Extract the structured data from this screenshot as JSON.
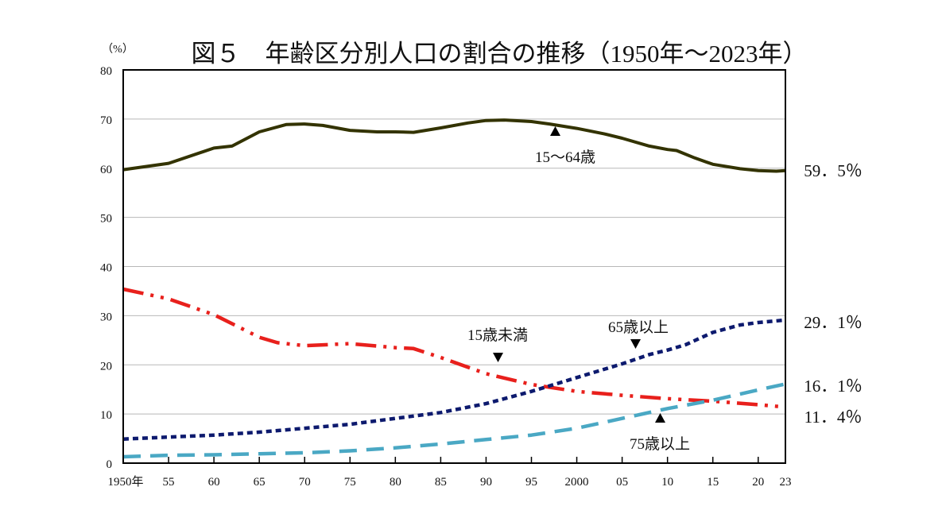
{
  "chart_data": {
    "type": "line",
    "title": "図５　年齢区分別人口の割合の推移（1950年～2023年）",
    "ylabel": "（%）",
    "xlabel": "",
    "ylim": [
      0,
      80
    ],
    "xlim": [
      1950,
      2023
    ],
    "y_ticks": [
      "0",
      "10",
      "20",
      "30",
      "40",
      "50",
      "60",
      "70",
      "80"
    ],
    "x_ticks": [
      {
        "year": 1950,
        "label": "1950年"
      },
      {
        "year": 1955,
        "label": "55"
      },
      {
        "year": 1960,
        "label": "60"
      },
      {
        "year": 1965,
        "label": "65"
      },
      {
        "year": 1970,
        "label": "70"
      },
      {
        "year": 1975,
        "label": "75"
      },
      {
        "year": 1980,
        "label": "80"
      },
      {
        "year": 1985,
        "label": "85"
      },
      {
        "year": 1990,
        "label": "90"
      },
      {
        "year": 1995,
        "label": "95"
      },
      {
        "year": 2000,
        "label": "2000"
      },
      {
        "year": 2005,
        "label": "05"
      },
      {
        "year": 2010,
        "label": "10"
      },
      {
        "year": 2015,
        "label": "15"
      },
      {
        "year": 2020,
        "label": "20"
      },
      {
        "year": 2023,
        "label": "23"
      }
    ],
    "grid": true,
    "series": [
      {
        "name": "15～64歳",
        "color": "#333300",
        "style": "solid",
        "end_label": "59．5％",
        "x": [
          1950,
          1955,
          1960,
          1962,
          1965,
          1968,
          1970,
          1972,
          1975,
          1978,
          1980,
          1982,
          1985,
          1988,
          1990,
          1992,
          1995,
          1997,
          2000,
          2003,
          2005,
          2008,
          2010,
          2011,
          2013,
          2015,
          2018,
          2020,
          2022,
          2023
        ],
        "y": [
          59.7,
          61.0,
          64.1,
          64.5,
          67.4,
          68.9,
          69.0,
          68.7,
          67.7,
          67.4,
          67.4,
          67.3,
          68.2,
          69.2,
          69.7,
          69.8,
          69.5,
          69.0,
          68.1,
          67.0,
          66.1,
          64.5,
          63.8,
          63.6,
          62.1,
          60.8,
          59.9,
          59.5,
          59.4,
          59.5
        ]
      },
      {
        "name": "15歳未満",
        "color": "#e8201c",
        "style": "dashdotdot",
        "end_label": "11．4％",
        "x": [
          1950,
          1955,
          1960,
          1965,
          1967,
          1970,
          1975,
          1980,
          1982,
          1985,
          1990,
          1995,
          2000,
          2005,
          2010,
          2015,
          2020,
          2023
        ],
        "y": [
          35.4,
          33.4,
          30.2,
          25.6,
          24.5,
          23.9,
          24.3,
          23.5,
          23.3,
          21.5,
          18.2,
          16.0,
          14.6,
          13.8,
          13.1,
          12.6,
          11.9,
          11.4
        ]
      },
      {
        "name": "65歳以上",
        "color": "#0d1a6e",
        "style": "dotted",
        "end_label": "29．1％",
        "x": [
          1950,
          1955,
          1960,
          1965,
          1970,
          1975,
          1980,
          1985,
          1990,
          1995,
          2000,
          2005,
          2008,
          2010,
          2012,
          2015,
          2018,
          2020,
          2023
        ],
        "y": [
          4.9,
          5.3,
          5.7,
          6.3,
          7.1,
          7.9,
          9.1,
          10.3,
          12.1,
          14.6,
          17.4,
          20.2,
          22.1,
          23.0,
          24.1,
          26.6,
          28.1,
          28.6,
          29.1
        ]
      },
      {
        "name": "75歳以上",
        "color": "#4aa8c4",
        "style": "dashed",
        "end_label": "16．1％",
        "x": [
          1950,
          1955,
          1960,
          1965,
          1970,
          1975,
          1980,
          1985,
          1990,
          1995,
          2000,
          2005,
          2010,
          2015,
          2020,
          2023
        ],
        "y": [
          1.3,
          1.6,
          1.7,
          1.9,
          2.1,
          2.5,
          3.1,
          3.9,
          4.8,
          5.7,
          7.1,
          9.1,
          11.1,
          12.8,
          14.9,
          16.1
        ]
      }
    ]
  }
}
